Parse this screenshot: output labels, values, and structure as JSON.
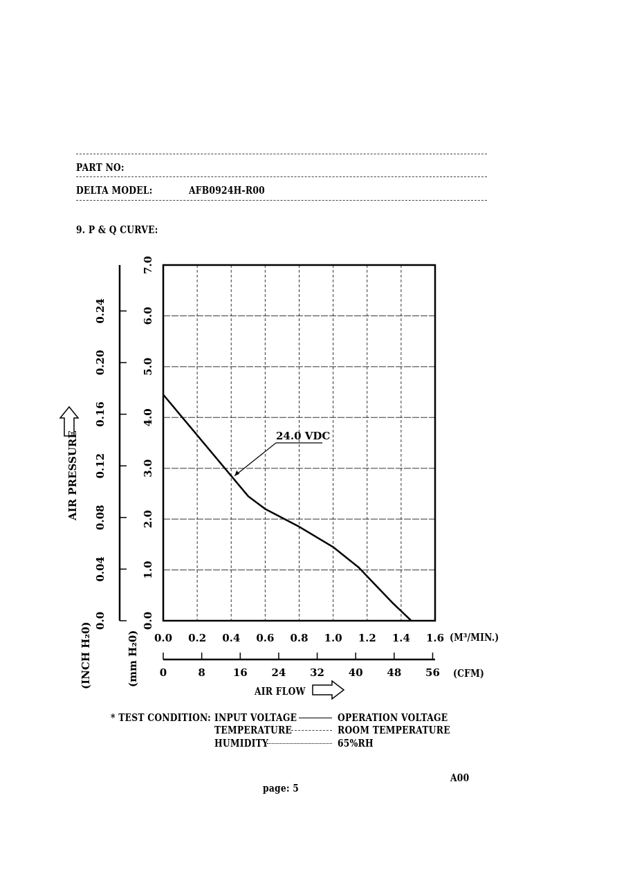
{
  "header": {
    "part_no_label": "PART NO:",
    "model_label": "DELTA MODEL:",
    "model_value": "AFB0924H-R00",
    "section_title": "9. P & Q CURVE:"
  },
  "chart_data": {
    "type": "line",
    "title": "",
    "xlabel": "AIR FLOW",
    "ylabel": "AIR PRESSURE",
    "x_unit": "(M³/MIN.)",
    "x_secondary_unit": "(CFM)",
    "y_unit": "(mm H₂0)",
    "y_secondary_unit": "(INCH H₂0)",
    "xlim": [
      0,
      1.6
    ],
    "ylim": [
      0,
      7.0
    ],
    "x_ticks": [
      "0.0",
      "0.2",
      "0.4",
      "0.6",
      "0.8",
      "1.0",
      "1.2",
      "1.4",
      "1.6"
    ],
    "x_tick_values": [
      0,
      0.2,
      0.4,
      0.6,
      0.8,
      1.0,
      1.2,
      1.4,
      1.6
    ],
    "cfm_ticks": [
      "0",
      "8",
      "16",
      "24",
      "32",
      "40",
      "48",
      "56"
    ],
    "cfm_tick_values": [
      0,
      8,
      16,
      24,
      32,
      40,
      48,
      56
    ],
    "y_ticks": [
      "0.0",
      "1.0",
      "2.0",
      "3.0",
      "4.0",
      "5.0",
      "6.0",
      "7.0"
    ],
    "y_tick_values": [
      0,
      1,
      2,
      3,
      4,
      5,
      6,
      7
    ],
    "inch_ticks": [
      "0.0",
      "0.04",
      "0.08",
      "0.12",
      "0.16",
      "0.20",
      "0.24"
    ],
    "inch_tick_values": [
      0,
      0.04,
      0.08,
      0.12,
      0.16,
      0.2,
      0.24
    ],
    "grid": true,
    "series": [
      {
        "name": "24.0 VDC",
        "x": [
          0.0,
          0.2,
          0.4,
          0.5,
          0.6,
          0.8,
          1.0,
          1.15,
          1.25,
          1.35,
          1.46
        ],
        "y": [
          4.45,
          3.65,
          2.85,
          2.45,
          2.2,
          1.85,
          1.45,
          1.05,
          0.7,
          0.35,
          0.0
        ]
      }
    ],
    "annotation": {
      "text": "24.0 VDC",
      "x": 0.42,
      "y": 2.85
    }
  },
  "test_condition": {
    "heading": "* TEST CONDITION:",
    "rows": [
      {
        "label": "INPUT VOLTAGE",
        "value": "OPERATION VOLTAGE"
      },
      {
        "label": "TEMPERATURE",
        "value": "ROOM TEMPERATURE"
      },
      {
        "label": "HUMIDITY",
        "value": "65%RH"
      }
    ]
  },
  "footer": {
    "revision": "A00",
    "page": "page: 5"
  }
}
